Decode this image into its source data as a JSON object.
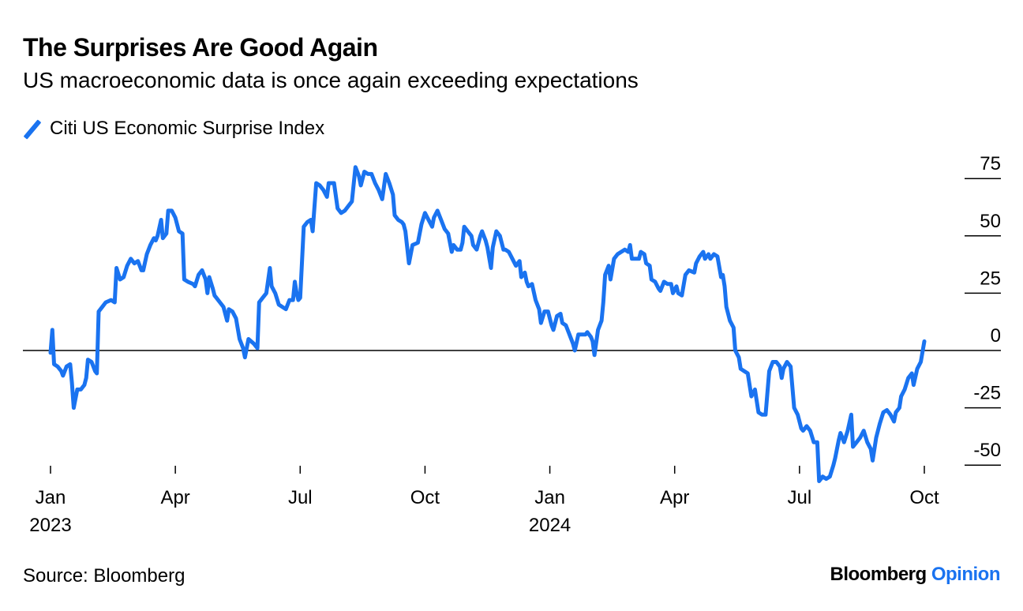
{
  "header": {
    "title": "The Surprises Are Good Again",
    "subtitle": "US macroeconomic data is once again exceeding expectations"
  },
  "legend": {
    "label": "Citi US Economic Surprise Index",
    "color": "#1a73f0"
  },
  "footer": {
    "source": "Source: Bloomberg",
    "brand_main": "Bloomberg",
    "brand_accent": "Opinion",
    "brand_accent_color": "#1a73f0"
  },
  "chart_data": {
    "type": "line",
    "title": "The Surprises Are Good Again",
    "subtitle": "US macroeconomic data is once again exceeding expectations",
    "xlabel": "",
    "ylabel": "",
    "ylim": [
      -50,
      75
    ],
    "yticks": [
      75,
      50,
      25,
      0,
      -25,
      -50
    ],
    "ytick_labels": [
      "75",
      "50",
      "25",
      "0",
      "-25",
      "-50"
    ],
    "x_unit": "months since Jan 2023",
    "xlim": [
      0,
      21.3
    ],
    "xticks": [
      {
        "x": 0,
        "label": "Jan",
        "sublabel": "2023"
      },
      {
        "x": 3,
        "label": "Apr",
        "sublabel": ""
      },
      {
        "x": 6,
        "label": "Jul",
        "sublabel": ""
      },
      {
        "x": 9,
        "label": "Oct",
        "sublabel": ""
      },
      {
        "x": 12,
        "label": "Jan",
        "sublabel": "2024"
      },
      {
        "x": 15,
        "label": "Apr",
        "sublabel": ""
      },
      {
        "x": 18,
        "label": "Jul",
        "sublabel": ""
      },
      {
        "x": 21,
        "label": "Oct",
        "sublabel": ""
      }
    ],
    "reference_line": 0,
    "grid": false,
    "legend_position": "top-left",
    "series": [
      {
        "name": "Citi US Economic Surprise Index",
        "color": "#1a73f0",
        "points": [
          [
            0.0,
            -1
          ],
          [
            0.05,
            9
          ],
          [
            0.1,
            -6
          ],
          [
            0.2,
            -7
          ],
          [
            0.3,
            -9
          ],
          [
            0.35,
            -11
          ],
          [
            0.45,
            -7
          ],
          [
            0.55,
            -6
          ],
          [
            0.6,
            -14
          ],
          [
            0.65,
            -25
          ],
          [
            0.75,
            -17
          ],
          [
            0.85,
            -17
          ],
          [
            0.95,
            -15
          ],
          [
            1.0,
            -12
          ],
          [
            1.05,
            -4
          ],
          [
            1.15,
            -5
          ],
          [
            1.25,
            -9
          ],
          [
            1.3,
            -10
          ],
          [
            1.35,
            17
          ],
          [
            1.45,
            19
          ],
          [
            1.55,
            21
          ],
          [
            1.7,
            22
          ],
          [
            1.8,
            21
          ],
          [
            1.85,
            36
          ],
          [
            1.95,
            31
          ],
          [
            2.05,
            32
          ],
          [
            2.15,
            37
          ],
          [
            2.25,
            40
          ],
          [
            2.35,
            38
          ],
          [
            2.45,
            39
          ],
          [
            2.55,
            35
          ],
          [
            2.6,
            35
          ],
          [
            2.7,
            42
          ],
          [
            2.8,
            46
          ],
          [
            2.9,
            49
          ],
          [
            2.95,
            48
          ],
          [
            3.0,
            50
          ],
          [
            3.1,
            57
          ],
          [
            3.15,
            49
          ],
          [
            3.25,
            51
          ],
          [
            3.3,
            61
          ],
          [
            3.4,
            61
          ],
          [
            3.5,
            58
          ],
          [
            3.6,
            52
          ],
          [
            3.7,
            51
          ],
          [
            3.75,
            31
          ],
          [
            3.85,
            30
          ],
          [
            4.0,
            29
          ],
          [
            4.05,
            28
          ],
          [
            4.15,
            33
          ],
          [
            4.25,
            35
          ],
          [
            4.35,
            31
          ],
          [
            4.4,
            25
          ],
          [
            4.45,
            32
          ],
          [
            4.55,
            27
          ],
          [
            4.6,
            24
          ],
          [
            4.65,
            23
          ],
          [
            4.75,
            21
          ],
          [
            4.85,
            19
          ],
          [
            4.95,
            13
          ],
          [
            5.0,
            18
          ],
          [
            5.1,
            17
          ],
          [
            5.2,
            14
          ],
          [
            5.3,
            5
          ],
          [
            5.4,
            1
          ],
          [
            5.45,
            -3
          ],
          [
            5.55,
            5
          ],
          [
            5.7,
            3
          ],
          [
            5.8,
            1
          ],
          [
            5.85,
            21
          ],
          [
            5.95,
            23
          ],
          [
            6.05,
            25
          ],
          [
            6.15,
            36
          ],
          [
            6.2,
            28
          ],
          [
            6.3,
            25
          ],
          [
            6.4,
            20
          ],
          [
            6.5,
            19
          ],
          [
            6.6,
            18
          ],
          [
            6.7,
            22
          ],
          [
            6.8,
            22
          ],
          [
            6.85,
            30
          ],
          [
            6.9,
            25
          ],
          [
            6.95,
            22
          ],
          [
            7.0,
            23
          ],
          [
            7.1,
            54
          ],
          [
            7.2,
            56
          ],
          [
            7.3,
            57
          ],
          [
            7.35,
            52
          ],
          [
            7.45,
            73
          ],
          [
            7.55,
            72
          ],
          [
            7.65,
            70
          ],
          [
            7.75,
            67
          ],
          [
            7.8,
            73
          ],
          [
            7.95,
            73
          ],
          [
            8.05,
            62
          ],
          [
            8.15,
            60
          ],
          [
            8.25,
            61
          ],
          [
            8.35,
            63
          ],
          [
            8.45,
            65
          ],
          [
            8.55,
            80
          ],
          [
            8.65,
            76
          ],
          [
            8.7,
            72
          ],
          [
            8.8,
            78
          ],
          [
            8.9,
            77
          ],
          [
            9.0,
            77
          ],
          [
            9.1,
            73
          ],
          [
            9.2,
            70
          ],
          [
            9.3,
            66
          ],
          [
            9.4,
            77
          ],
          [
            9.5,
            73
          ],
          [
            9.6,
            68
          ],
          [
            9.65,
            59
          ],
          [
            9.75,
            57
          ],
          [
            9.85,
            56
          ],
          [
            9.9,
            55
          ],
          [
            9.95,
            52
          ],
          [
            10.05,
            38
          ],
          [
            10.15,
            46
          ],
          [
            10.3,
            47
          ],
          [
            10.4,
            55
          ],
          [
            10.5,
            60
          ],
          [
            10.6,
            57
          ],
          [
            10.7,
            54
          ],
          [
            10.75,
            58
          ],
          [
            10.85,
            61
          ],
          [
            10.95,
            57
          ],
          [
            11.05,
            53
          ],
          [
            11.15,
            51
          ],
          [
            11.25,
            43
          ],
          [
            11.3,
            46
          ],
          [
            11.4,
            44
          ],
          [
            11.5,
            44
          ],
          [
            11.55,
            47
          ],
          [
            11.6,
            54
          ],
          [
            11.7,
            52
          ],
          [
            11.8,
            50
          ],
          [
            11.85,
            46
          ],
          [
            11.95,
            44
          ],
          [
            12.05,
            50
          ],
          [
            12.1,
            52
          ],
          [
            12.2,
            48
          ],
          [
            12.25,
            45
          ],
          [
            12.35,
            36
          ],
          [
            12.4,
            45
          ],
          [
            12.5,
            52
          ],
          [
            12.6,
            50
          ],
          [
            12.7,
            44
          ],
          [
            12.75,
            44
          ],
          [
            12.85,
            43
          ],
          [
            12.95,
            40
          ],
          [
            13.05,
            37
          ],
          [
            13.15,
            39
          ],
          [
            13.2,
            32
          ],
          [
            13.3,
            34
          ],
          [
            13.35,
            30
          ],
          [
            13.4,
            28
          ],
          [
            13.5,
            29
          ],
          [
            13.6,
            22
          ],
          [
            13.7,
            18
          ],
          [
            13.75,
            12
          ],
          [
            13.85,
            17
          ],
          [
            13.95,
            17
          ],
          [
            14.05,
            11
          ],
          [
            14.1,
            9
          ],
          [
            14.2,
            15
          ],
          [
            14.3,
            16
          ],
          [
            14.35,
            12
          ],
          [
            14.45,
            11
          ],
          [
            14.55,
            7
          ],
          [
            14.65,
            3
          ],
          [
            14.7,
            0
          ],
          [
            14.8,
            7
          ],
          [
            14.9,
            7
          ],
          [
            15.0,
            7
          ],
          [
            15.05,
            8
          ],
          [
            15.15,
            6
          ],
          [
            15.2,
            4
          ],
          [
            15.25,
            -2
          ],
          [
            15.35,
            9
          ],
          [
            15.45,
            13
          ],
          [
            15.5,
            21
          ],
          [
            15.55,
            33
          ],
          [
            15.65,
            37
          ],
          [
            15.7,
            31
          ],
          [
            15.8,
            40
          ],
          [
            15.9,
            42
          ],
          [
            16.0,
            43
          ],
          [
            16.1,
            44
          ],
          [
            16.2,
            43
          ],
          [
            16.25,
            46
          ],
          [
            16.3,
            40
          ],
          [
            16.4,
            40
          ],
          [
            16.5,
            40
          ],
          [
            16.55,
            43
          ],
          [
            16.65,
            42
          ],
          [
            16.7,
            38
          ],
          [
            16.8,
            37
          ],
          [
            16.85,
            31
          ],
          [
            16.95,
            30
          ],
          [
            17.05,
            27
          ],
          [
            17.1,
            26
          ],
          [
            17.2,
            30
          ],
          [
            17.3,
            29
          ],
          [
            17.4,
            29
          ],
          [
            17.45,
            25
          ],
          [
            17.55,
            28
          ],
          [
            17.6,
            25
          ],
          [
            17.7,
            24
          ],
          [
            17.8,
            33
          ],
          [
            17.9,
            35
          ],
          [
            18.05,
            34
          ],
          [
            18.1,
            38
          ],
          [
            18.2,
            41
          ],
          [
            18.3,
            43
          ],
          [
            18.35,
            40
          ],
          [
            18.45,
            42
          ],
          [
            18.5,
            40
          ],
          [
            18.6,
            42
          ],
          [
            18.7,
            41
          ],
          [
            18.8,
            32
          ],
          [
            18.85,
            33
          ],
          [
            18.9,
            28
          ],
          [
            18.95,
            19
          ],
          [
            19.05,
            13
          ],
          [
            19.15,
            10
          ],
          [
            19.2,
            0
          ],
          [
            19.3,
            -3
          ],
          [
            19.35,
            -8
          ],
          [
            19.45,
            -9
          ],
          [
            19.55,
            -10
          ],
          [
            19.65,
            -20
          ],
          [
            19.75,
            -17
          ],
          [
            19.85,
            -27
          ],
          [
            19.95,
            -28
          ],
          [
            20.05,
            -28
          ],
          [
            20.15,
            -9
          ],
          [
            20.25,
            -5
          ],
          [
            20.35,
            -5
          ],
          [
            20.45,
            -7
          ],
          [
            20.5,
            -12
          ],
          [
            20.55,
            -8
          ],
          [
            20.65,
            -5
          ],
          [
            20.75,
            -7
          ],
          [
            20.85,
            -25
          ],
          [
            20.95,
            -28
          ],
          [
            21.05,
            -34
          ],
          [
            21.1,
            -35
          ],
          [
            21.2,
            -33
          ],
          [
            21.3,
            -35
          ],
          [
            21.4,
            -40
          ],
          [
            21.5,
            -40
          ],
          [
            21.55,
            -57
          ],
          [
            21.65,
            -55
          ],
          [
            21.75,
            -56
          ],
          [
            21.85,
            -55
          ],
          [
            21.95,
            -50
          ],
          [
            22.0,
            -47
          ],
          [
            22.1,
            -39
          ],
          [
            22.15,
            -36
          ],
          [
            22.25,
            -40
          ],
          [
            22.35,
            -35
          ],
          [
            22.45,
            -28
          ],
          [
            22.5,
            -42
          ],
          [
            22.6,
            -40
          ],
          [
            22.7,
            -38
          ],
          [
            22.8,
            -35
          ],
          [
            22.9,
            -40
          ],
          [
            23.0,
            -43
          ],
          [
            23.05,
            -48
          ],
          [
            23.15,
            -38
          ],
          [
            23.25,
            -32
          ],
          [
            23.35,
            -27
          ],
          [
            23.45,
            -26
          ],
          [
            23.55,
            -28
          ],
          [
            23.65,
            -31
          ],
          [
            23.7,
            -27
          ],
          [
            23.8,
            -25
          ],
          [
            23.85,
            -20
          ],
          [
            23.95,
            -17
          ],
          [
            24.05,
            -12
          ],
          [
            24.15,
            -10
          ],
          [
            24.2,
            -15
          ],
          [
            24.3,
            -8
          ],
          [
            24.4,
            -5
          ],
          [
            24.5,
            4
          ]
        ]
      }
    ]
  }
}
